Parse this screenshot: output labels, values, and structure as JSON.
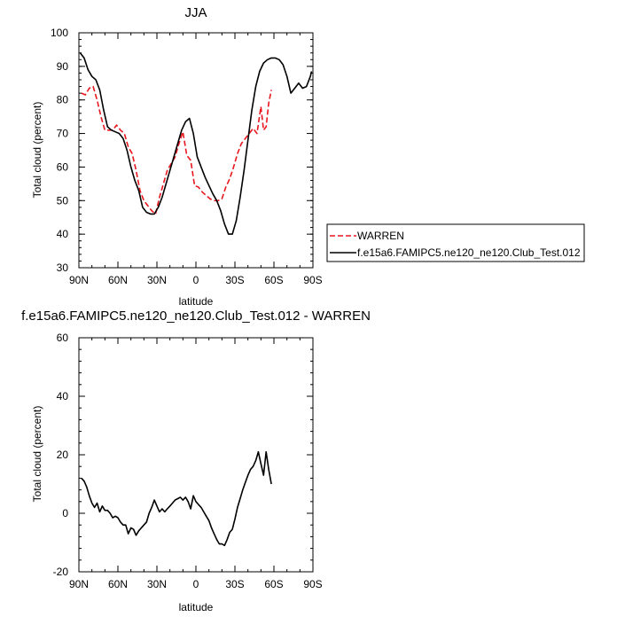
{
  "chart_data": [
    {
      "type": "line",
      "title": "JJA",
      "xlabel": "latitude",
      "ylabel": "Total cloud (percent)",
      "xlim": [
        90,
        -90
      ],
      "ylim": [
        30,
        100
      ],
      "xticks": [
        90,
        60,
        30,
        0,
        -30,
        -60,
        -90
      ],
      "xticklabels": [
        "90N",
        "60N",
        "30N",
        "0",
        "30S",
        "60S",
        "90S"
      ],
      "yticks": [
        30,
        40,
        50,
        60,
        70,
        80,
        90,
        100
      ],
      "yticklabels": [
        "30",
        "40",
        "50",
        "60",
        "70",
        "80",
        "90",
        "100"
      ],
      "legend": {
        "placement": "outside-right",
        "entries": [
          "WARREN",
          "f.e15a6.FAMIPC5.ne120_ne120.Club_Test.012"
        ]
      },
      "series": [
        {
          "name": "WARREN",
          "color": "#e8161d",
          "dash": "dashed",
          "x": [
            88,
            85,
            82,
            79,
            76,
            73,
            70,
            67,
            64,
            61,
            58,
            55,
            52,
            49,
            46,
            43,
            40,
            37,
            34,
            31,
            28,
            25,
            22,
            19,
            16,
            13,
            10,
            7,
            4,
            1,
            -2,
            -5,
            -8,
            -11,
            -14,
            -17,
            -20,
            -23,
            -26,
            -29,
            -32,
            -35,
            -38,
            -41,
            -44,
            -47,
            -50,
            -52,
            -54,
            -56,
            -58
          ],
          "y": [
            82,
            81.5,
            83.5,
            84,
            80,
            75,
            71,
            71,
            71,
            72.5,
            71,
            70,
            66,
            64,
            59,
            53,
            50,
            48.5,
            47,
            46,
            51,
            55,
            59,
            61,
            63,
            67,
            70.5,
            63.5,
            62,
            54.5,
            54,
            52.5,
            51.5,
            50.5,
            50,
            50,
            50.5,
            54,
            56.5,
            60,
            64,
            67,
            68.5,
            70,
            71.5,
            70,
            78,
            71,
            72,
            79,
            83
          ]
        },
        {
          "name": "f.e15a6.FAMIPC5.ne120_ne120.Club_Test.012",
          "color": "#000000",
          "dash": "solid",
          "x": [
            89,
            86,
            83,
            80,
            77,
            74,
            71,
            68,
            65,
            62,
            59,
            56,
            53,
            50,
            47,
            44,
            41,
            38,
            35,
            32,
            29,
            26,
            23,
            20,
            17,
            14,
            11,
            8,
            5,
            2,
            -1,
            -4,
            -7,
            -10,
            -13,
            -16,
            -19,
            -22,
            -25,
            -28,
            -31,
            -34,
            -37,
            -40,
            -43,
            -46,
            -49,
            -52,
            -55,
            -58,
            -61,
            -64,
            -67,
            -70,
            -73,
            -76,
            -79,
            -82,
            -85,
            -88,
            -89
          ],
          "y": [
            94,
            92.5,
            89,
            87,
            86,
            83,
            77,
            72,
            71,
            70.5,
            70,
            68.5,
            65,
            60,
            56,
            53,
            48,
            46.5,
            46,
            46,
            48,
            51,
            55,
            59,
            63,
            67,
            71,
            73.5,
            74.5,
            70,
            63,
            60,
            57,
            54.5,
            52,
            50,
            47,
            43,
            40,
            40,
            44,
            51,
            59,
            68,
            77,
            84,
            88.5,
            91,
            92,
            92.5,
            92.5,
            92,
            90.5,
            87,
            82,
            83.5,
            85,
            83.5,
            84,
            87,
            88.5
          ]
        }
      ]
    },
    {
      "type": "line",
      "title": "f.e15a6.FAMIPC5.ne120_ne120.Club_Test.012 - WARREN",
      "xlabel": "latitude",
      "ylabel": "Total cloud (percent)",
      "xlim": [
        90,
        -90
      ],
      "ylim": [
        -20,
        60
      ],
      "xticks": [
        90,
        60,
        30,
        0,
        -30,
        -60,
        -90
      ],
      "xticklabels": [
        "90N",
        "60N",
        "30N",
        "0",
        "30S",
        "60S",
        "90S"
      ],
      "yticks": [
        -20,
        0,
        20,
        40,
        60
      ],
      "yticklabels": [
        "-20",
        "0",
        "20",
        "40",
        "60"
      ],
      "series": [
        {
          "color": "#000000",
          "dash": "solid",
          "x": [
            88,
            86,
            84,
            82,
            80,
            78,
            76,
            74,
            72,
            70,
            68,
            66,
            64,
            62,
            60,
            58,
            56,
            54,
            52,
            50,
            48,
            46,
            44,
            42,
            40,
            38,
            36,
            34,
            32,
            30,
            28,
            26,
            24,
            22,
            20,
            18,
            16,
            14,
            12,
            10,
            8,
            6,
            4,
            2,
            0,
            -2,
            -4,
            -6,
            -8,
            -10,
            -12,
            -14,
            -16,
            -18,
            -20,
            -22,
            -24,
            -26,
            -28,
            -30,
            -32,
            -34,
            -36,
            -38,
            -40,
            -42,
            -44,
            -46,
            -48,
            -50,
            -52,
            -54,
            -56,
            -58
          ],
          "y": [
            12,
            11,
            9,
            6,
            3.5,
            2,
            3.5,
            0.5,
            2.5,
            1,
            1,
            0,
            -1.5,
            -1,
            -1.5,
            -3,
            -4,
            -4,
            -7,
            -5,
            -5.5,
            -7.5,
            -6,
            -5,
            -4,
            -3,
            0,
            2,
            4.5,
            2.5,
            0.5,
            1.5,
            0.5,
            1.5,
            2.5,
            3.5,
            4.5,
            5,
            5.5,
            4.5,
            5.5,
            4,
            1.5,
            6,
            4,
            3,
            2,
            0.5,
            -1,
            -2.5,
            -5,
            -7,
            -9,
            -10.5,
            -10.5,
            -11,
            -9,
            -6.5,
            -5.5,
            -2,
            2,
            5,
            8,
            10.5,
            13,
            15,
            16,
            18,
            21,
            17,
            13,
            21,
            15,
            10
          ]
        }
      ]
    }
  ]
}
